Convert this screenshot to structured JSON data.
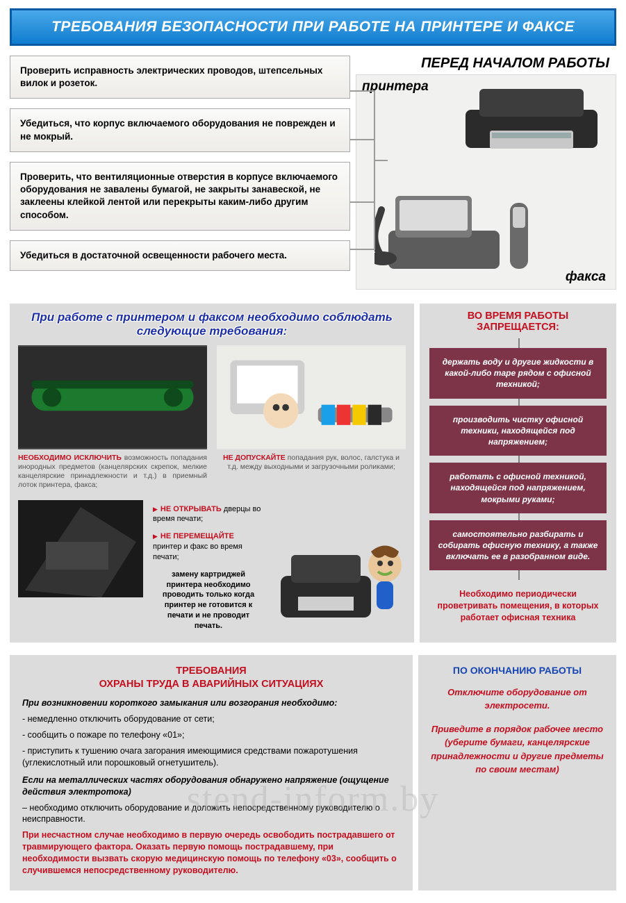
{
  "colors": {
    "header_bg_from": "#4aa9e9",
    "header_bg_to": "#0f7ccf",
    "header_border": "#0a5aa6",
    "header_text": "#ffffff",
    "panel_gray": "#dcdcdc",
    "box_border": "#a9a9a9",
    "prohibition_bg": "#7d3449",
    "red": "#c30f1f",
    "blue_title": "#1d2fa5",
    "blue_header2": "#1744b3"
  },
  "header": {
    "title": "ТРЕБОВАНИЯ БЕЗОПАСНОСТИ ПРИ РАБОТЕ НА ПРИНТЕРЕ И ФАКСЕ",
    "fontsize": 21
  },
  "before_work": {
    "title": "ПЕРЕД НАЧАЛОМ РАБОТЫ",
    "items": [
      "Проверить исправность электрических проводов, штепсельных вилок и розеток.",
      "Убедиться, что корпус включаемого оборудования не поврежден и не мокрый.",
      "Проверить, что вентиляционные отверстия в корпусе включаемого оборудования не завалены бумагой, не закрыты занавеской, не заклеены клейкой лентой или перекрыты каким-либо другим способом.",
      "Убедиться в достаточной освещенности рабочего места."
    ],
    "device_labels": {
      "printer": "принтера",
      "fax": "факса"
    }
  },
  "during_work": {
    "title": "При работе с принтером и факсом необходимо соблюдать следующие требования:",
    "left_caption_red": "НЕОБХОДИМО ИСКЛЮЧИТЬ",
    "left_caption": " возможность попадания инородных предметов (канцелярских скрепок, мелкие канцелярские принадлежности и т.д.) в приемный лоток принтера, факса;",
    "right_caption_red": "НЕ ДОПУСКАЙТЕ",
    "right_caption": " попадания рук, волос, галстука и т.д. между выходными и загрузочными роликами;",
    "rules": [
      {
        "red": "НЕ ОТКРЫВАТЬ",
        "text": " дверцы во время печати;"
      },
      {
        "red": "НЕ ПЕРЕМЕЩАЙТЕ",
        "text": " принтер и факс во время печати;"
      }
    ],
    "note": "замену картриджей принтера необходимо проводить только когда принтер не готовится к печати и не проводит печать."
  },
  "prohibited": {
    "title": "ВО ВРЕМЯ РАБОТЫ ЗАПРЕЩАЕТСЯ:",
    "items": [
      "держать воду и другие жидкости в какой-либо таре рядом с офисной техникой;",
      "производить чистку офисной техники, находящейся под напряжением;",
      "работать с офисной техникой, находящейся под напряжением, мокрыми руками;",
      "самостоятельно разбирать и собирать офисную технику, а также включать ее в разобранном виде."
    ],
    "ventilation": "Необходимо периодически проветривать помещения, в которых работает офисная техника"
  },
  "emergency": {
    "title_line1": "ТРЕБОВАНИЯ",
    "title_line2": "ОХРАНЫ ТРУДА В АВАРИЙНЫХ СИТУАЦИЯХ",
    "block1_lead": "При возникновении короткого замыкания или возгорания необходимо:",
    "block1_items": [
      "- немедленно отключить оборудование от сети;",
      "- сообщить о пожаре по телефону «01»;",
      "- приступить к тушению очага загорания имеющимися средствами пожаротушения (углекислотный или порошковый огнетушитель)."
    ],
    "block2_lead": "Если на металлических частях оборудования обнаружено напряжение (ощущение действия электротока)",
    "block2_text": " – необходимо отключить оборудование и доложить непосредственному руководителю о неисправности.",
    "block3": "При несчастном случае необходимо в первую очередь освободить пострадавшего от травмирующего фактора. Оказать первую помощь пострадавшему, при необходимости вызвать скорую медицинскую помощь по телефону «03», сообщить о случившемся непосредственному руководителю."
  },
  "after_work": {
    "title": "ПО ОКОНЧАНИЮ РАБОТЫ",
    "line1": "Отключите оборудование от электросети.",
    "line2": "Приведите в порядок рабочее место (уберите бумаги, канцелярские принадлежности и другие предметы по своим местам)"
  },
  "watermark": "stend-inform.by"
}
